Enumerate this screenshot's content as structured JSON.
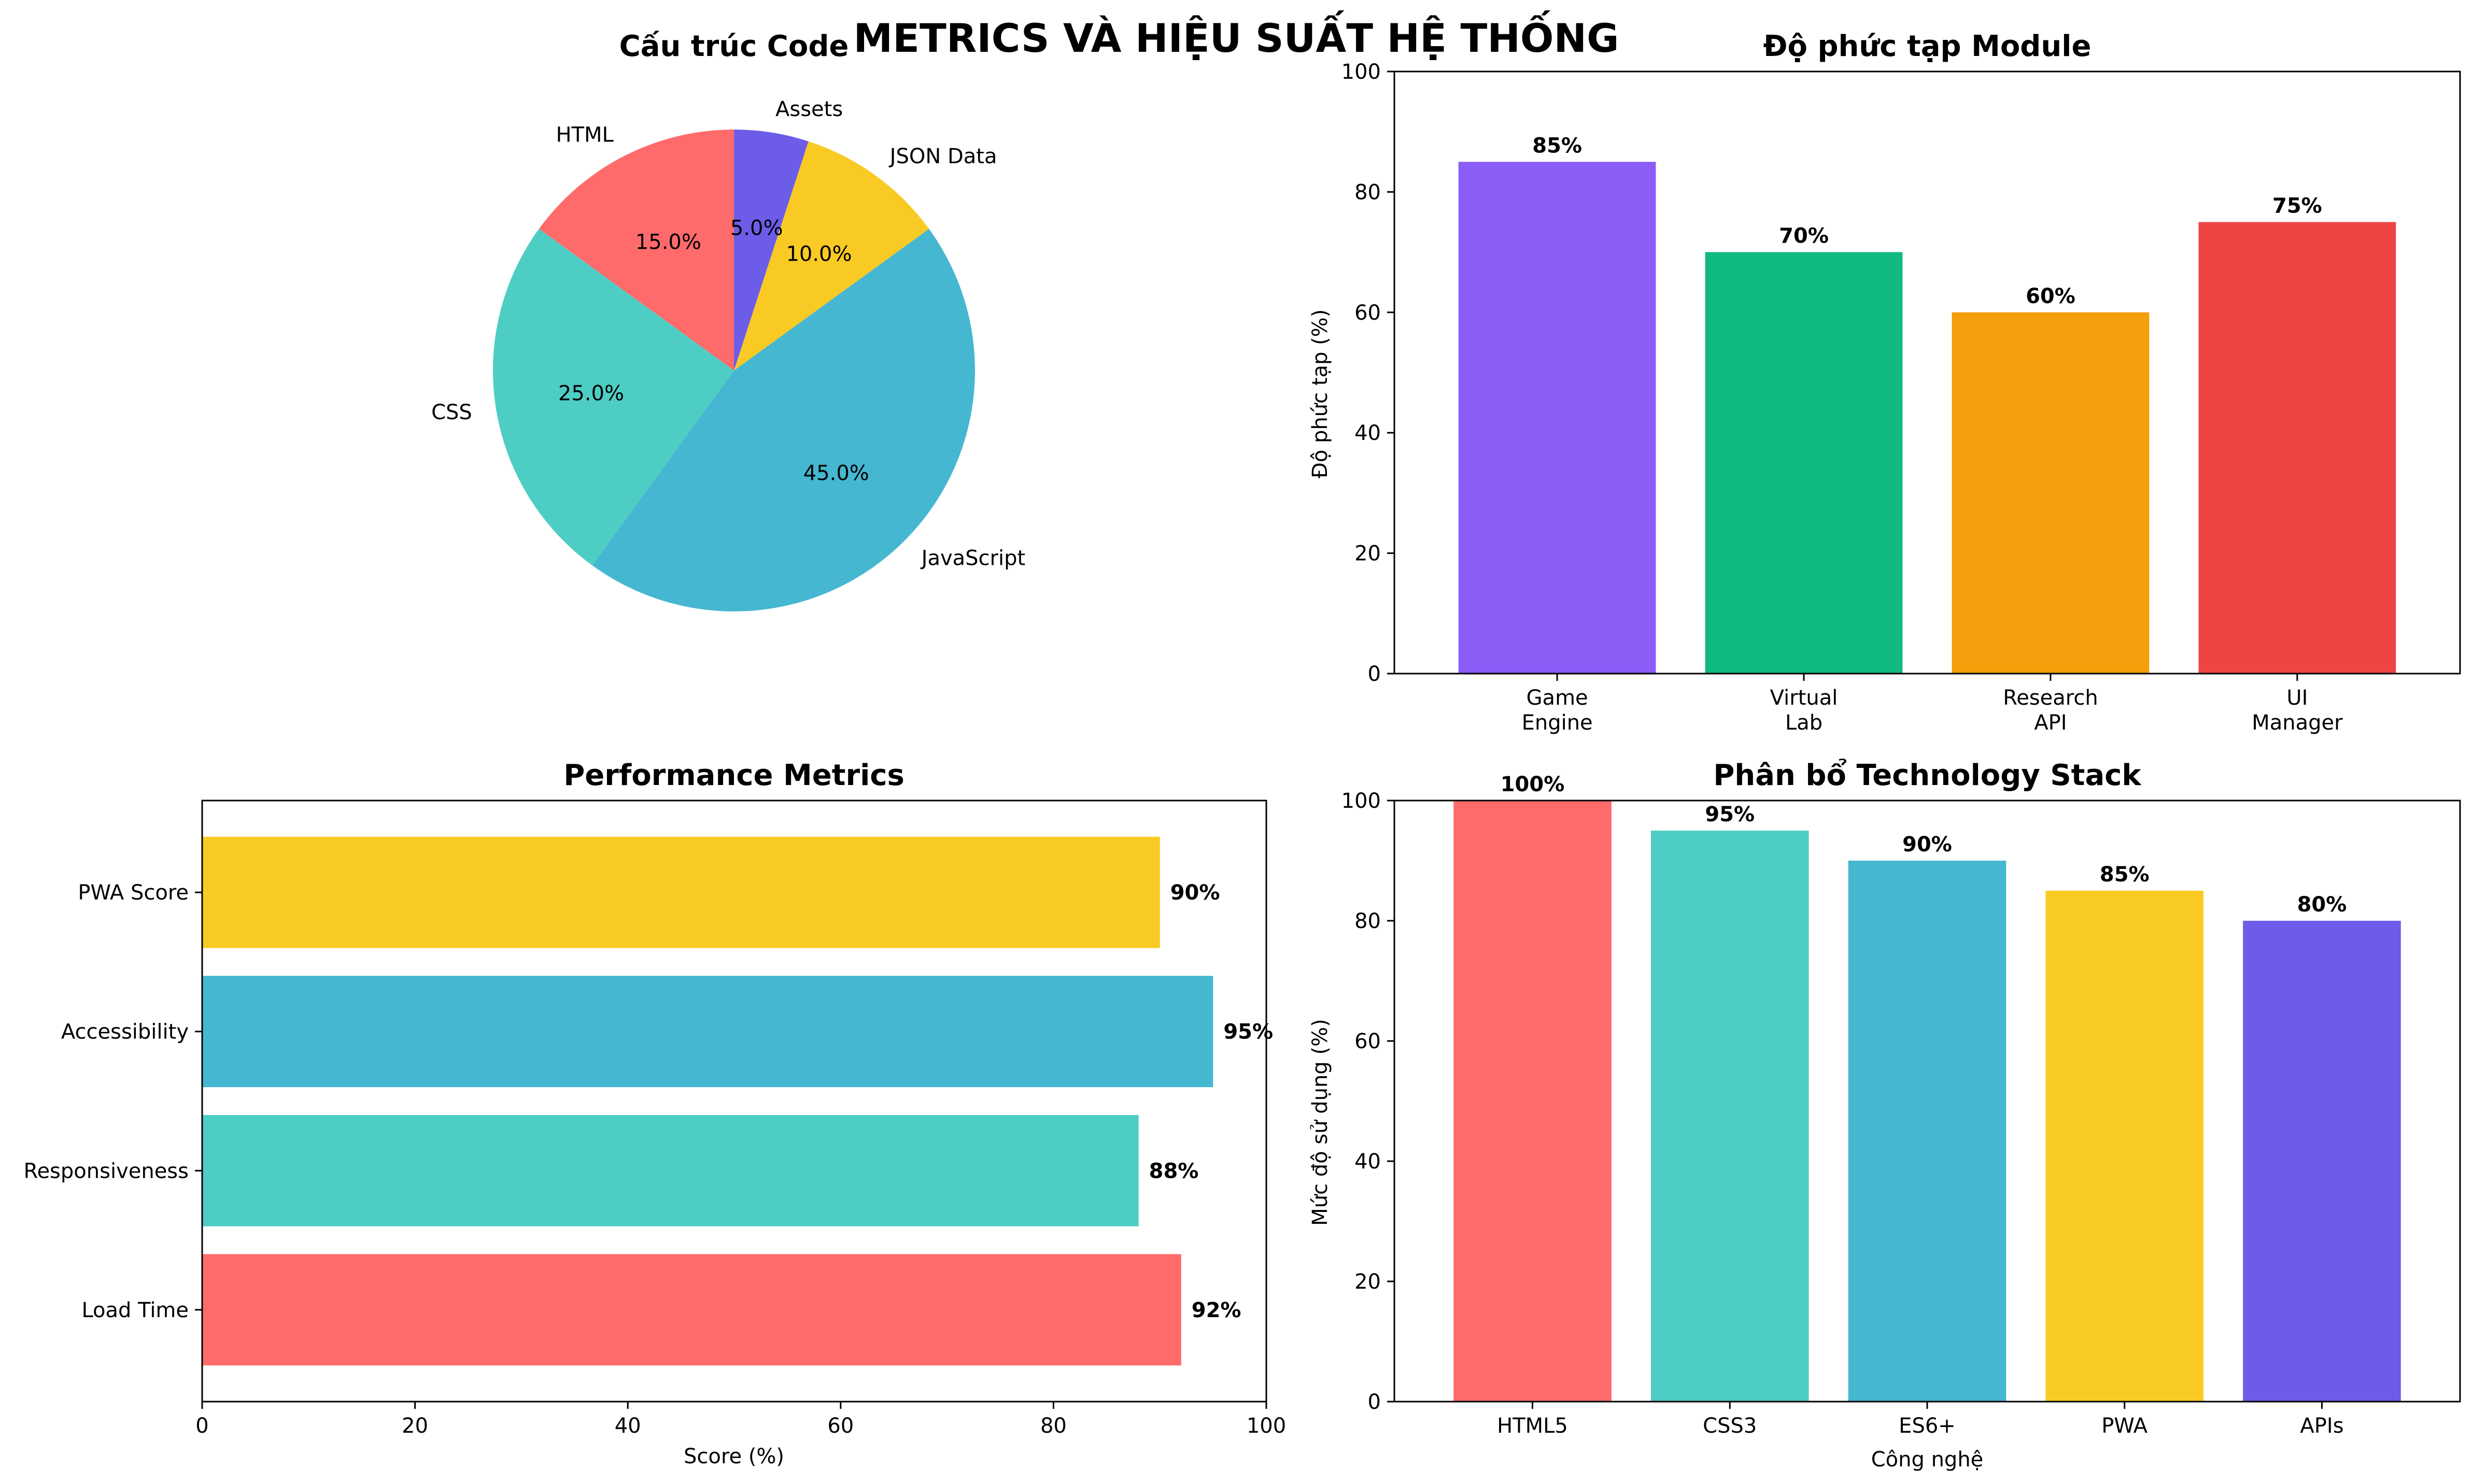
{
  "suptitle": "METRICS VÀ HIỆU SUẤT HỆ THỐNG",
  "chart_data": [
    {
      "type": "pie",
      "title": "Cấu trúc Code",
      "labels": [
        "HTML",
        "CSS",
        "JavaScript",
        "JSON Data",
        "Assets"
      ],
      "values": [
        15.0,
        25.0,
        45.0,
        10.0,
        5.0
      ],
      "value_labels": [
        "15.0%",
        "25.0%",
        "45.0%",
        "10.0%",
        "5.0%"
      ],
      "colors": [
        "#FF6B6B",
        "#4ECDC4",
        "#45B7D1",
        "#F9CA24",
        "#6C5CE7"
      ]
    },
    {
      "type": "bar",
      "title": "Độ phức tạp Module",
      "categories": [
        [
          "Game",
          "Engine"
        ],
        [
          "Virtual",
          "Lab"
        ],
        [
          "Research",
          "API"
        ],
        [
          "UI",
          "Manager"
        ]
      ],
      "values": [
        85,
        70,
        60,
        75
      ],
      "value_labels": [
        "85%",
        "70%",
        "60%",
        "75%"
      ],
      "ylabel": "Độ phức tạp (%)",
      "xlabel": "",
      "ylim": [
        0,
        100
      ],
      "yticks": [
        0,
        20,
        40,
        60,
        80,
        100
      ],
      "colors": [
        "#8B5CF6",
        "#10B981",
        "#F59E0B",
        "#EF4444"
      ]
    },
    {
      "type": "bar",
      "orientation": "horizontal",
      "title": "Performance Metrics",
      "categories": [
        "Load Time",
        "Responsiveness",
        "Accessibility",
        "PWA Score"
      ],
      "values": [
        92,
        88,
        95,
        90
      ],
      "value_labels": [
        "92%",
        "88%",
        "95%",
        "90%"
      ],
      "xlabel": "Score (%)",
      "xlim": [
        0,
        100
      ],
      "xticks": [
        0,
        20,
        40,
        60,
        80,
        100
      ],
      "colors": [
        "#FF6B6B",
        "#4ECDC4",
        "#45B7D1",
        "#F9CA24"
      ]
    },
    {
      "type": "bar",
      "title": "Phân bổ Technology Stack",
      "categories": [
        "HTML5",
        "CSS3",
        "ES6+",
        "PWA",
        "APIs"
      ],
      "values": [
        100,
        95,
        90,
        85,
        80
      ],
      "value_labels": [
        "100%",
        "95%",
        "90%",
        "85%",
        "80%"
      ],
      "xlabel": "Công nghệ",
      "ylabel": "Mức độ sử dụng (%)",
      "ylim": [
        0,
        100
      ],
      "yticks": [
        0,
        20,
        40,
        60,
        80,
        100
      ],
      "colors": [
        "#FF6B6B",
        "#4ECDC4",
        "#45B7D1",
        "#F9CA24",
        "#6C5CE7"
      ]
    }
  ]
}
